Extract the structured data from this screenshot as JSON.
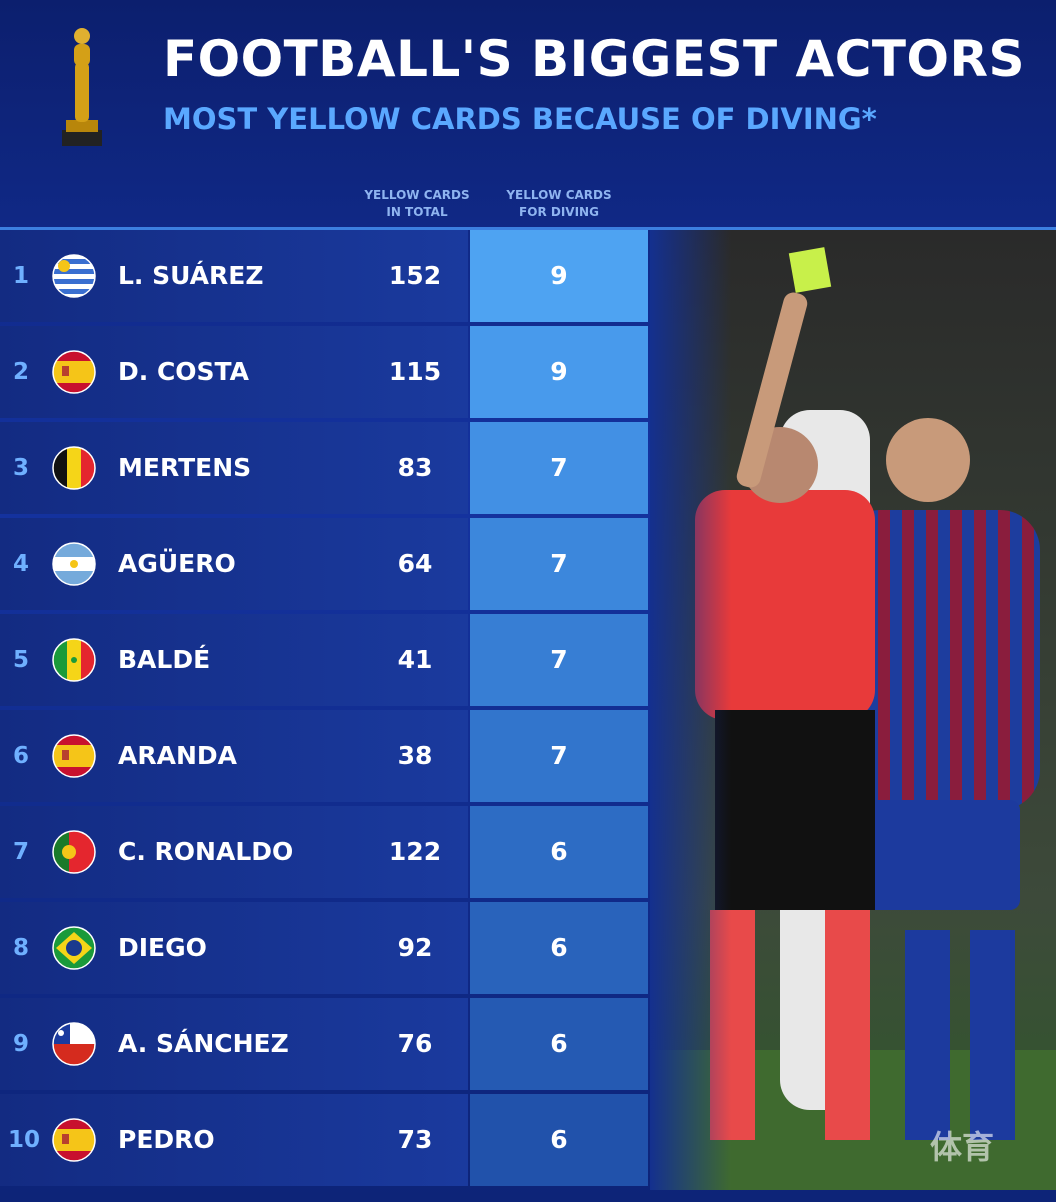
{
  "header": {
    "title": "FOOTBALL'S BIGGEST ACTORS",
    "subtitle": "MOST YELLOW CARDS BECAUSE OF DIVING*"
  },
  "table": {
    "columns": [
      "YELLOW CARDS IN TOTAL",
      "YELLOW CARDS FOR DIVING"
    ],
    "rows": [
      [
        "1",
        "L. SUÁREZ",
        "152",
        "9"
      ],
      [
        "2",
        "D. COSTA",
        "115",
        "9"
      ],
      [
        "3",
        "MERTENS",
        "83",
        "7"
      ],
      [
        "4",
        "AGÜERO",
        "64",
        "7"
      ],
      [
        "5",
        "BALDÉ",
        "41",
        "7"
      ],
      [
        "6",
        "ARANDA",
        "38",
        "7"
      ],
      [
        "7",
        "C. RONALDO",
        "122",
        "6"
      ],
      [
        "8",
        "DIEGO",
        "92",
        "6"
      ],
      [
        "9",
        "A. SÁNCHEZ",
        "76",
        "6"
      ],
      [
        "10",
        "PEDRO",
        "73",
        "6"
      ]
    ]
  },
  "watermark": "体育"
}
